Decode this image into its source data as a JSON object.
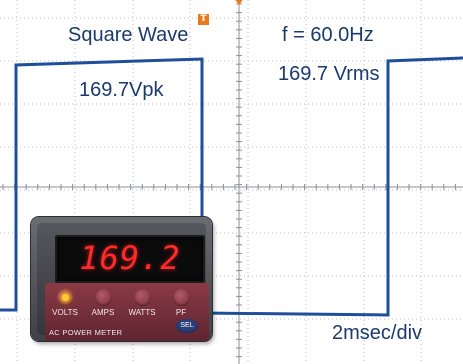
{
  "scope": {
    "title": "Square Wave",
    "trigger_marker": "T",
    "frequency": "f = 60.0Hz",
    "peak_voltage": "169.7Vpk",
    "rms_voltage": "169.7 Vrms",
    "timebase": "2msec/div",
    "trace_color": "#1f4f9a",
    "grid_color": "#b8bcc4",
    "text_color": "#1a3a6e",
    "trigger_color": "#e87a1c"
  },
  "meter": {
    "reading": "169.2",
    "name": "AC POWER METER",
    "buttons": [
      {
        "label": "VOLTS",
        "active": true
      },
      {
        "label": "AMPS",
        "active": false
      },
      {
        "label": "WATTS",
        "active": false
      },
      {
        "label": "PF",
        "active": false
      }
    ],
    "select_label": "SEL",
    "display_color": "#ff2a2a",
    "body_color": "#7a2c37"
  }
}
